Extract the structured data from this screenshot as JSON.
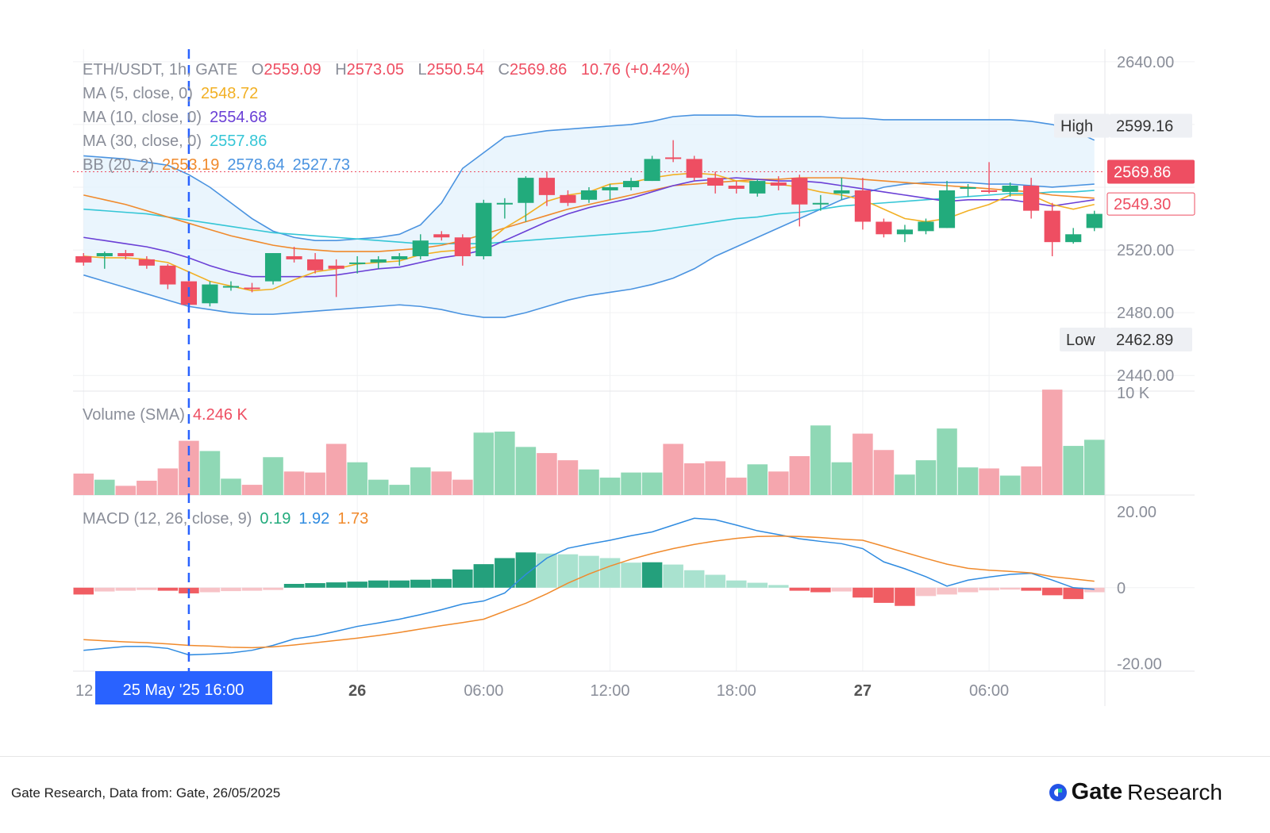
{
  "legend": {
    "ohlc": {
      "symbol": "ETH/USDT, 1h, GATE",
      "o_label": "O",
      "o": "2559.09",
      "h_label": "H",
      "h": "2573.05",
      "l_label": "L",
      "l": "2550.54",
      "c_label": "C",
      "c": "2569.86",
      "change": "10.76 (+0.42%)"
    },
    "ma5": {
      "label": "MA (5, close, 0)",
      "value": "2548.72"
    },
    "ma10": {
      "label": "MA (10, close, 0)",
      "value": "2554.68"
    },
    "ma30": {
      "label": "MA (30, close, 0)",
      "value": "2557.86"
    },
    "bb": {
      "label": "BB (20, 2)",
      "mid": "2553.19",
      "upper": "2578.64",
      "lower": "2527.73"
    },
    "volume": {
      "label": "Volume (SMA)",
      "value": "4.246 K"
    },
    "macd": {
      "label": "MACD (12, 26, close, 9)",
      "hist": "0.19",
      "macd": "1.92",
      "signal": "1.73"
    }
  },
  "price_badges": {
    "high_label": "High",
    "high": "2599.16",
    "low_label": "Low",
    "low": "2462.89",
    "last": "2569.86",
    "ma_tag": "2549.30"
  },
  "crosshair_label": "25 May '25   16:00",
  "footer": {
    "source": "Gate Research, Data from: Gate, 26/05/2025",
    "brand_bold": "Gate",
    "brand_light": "Research"
  },
  "colors": {
    "up": "#22ab7c",
    "down": "#ee4e62",
    "ma5": "#f2b024",
    "ma10": "#6a3fd6",
    "ma30": "#35c6d6",
    "bb_mid": "#f08a2c",
    "bb_band": "#4a93e0",
    "macd_line": "#2f8be0",
    "signal_line": "#f08a2c",
    "crosshair": "#2962ff"
  },
  "chart_data": {
    "type": "candlestick",
    "x_ticks": [
      "12",
      "26",
      "06:00",
      "12:00",
      "18:00",
      "27",
      "06:00"
    ],
    "price_axis": {
      "ticks": [
        "2640.00",
        "2520.00",
        "2480.00",
        "2440.00"
      ],
      "range": [
        2430,
        2648
      ]
    },
    "volume_axis": {
      "ticks": [
        "10 K"
      ],
      "range": [
        0,
        10000
      ]
    },
    "macd_axis": {
      "ticks": [
        "20.00",
        "0",
        "-20.00"
      ],
      "range": [
        -22,
        24
      ]
    },
    "candles": [
      [
        2516,
        2518,
        2510,
        2512
      ],
      [
        2516,
        2519,
        2508,
        2518
      ],
      [
        2518,
        2520,
        2514,
        2516
      ],
      [
        2514,
        2516,
        2508,
        2510
      ],
      [
        2510,
        2511,
        2495,
        2498
      ],
      [
        2500,
        2502,
        2482,
        2485
      ],
      [
        2486,
        2500,
        2484,
        2498
      ],
      [
        2497,
        2500,
        2494,
        2497
      ],
      [
        2496,
        2499,
        2493,
        2495
      ],
      [
        2500,
        2518,
        2498,
        2518
      ],
      [
        2516,
        2522,
        2512,
        2514
      ],
      [
        2514,
        2518,
        2505,
        2507
      ],
      [
        2510,
        2514,
        2490,
        2508
      ],
      [
        2512,
        2516,
        2505,
        2512
      ],
      [
        2512,
        2516,
        2508,
        2514
      ],
      [
        2514,
        2518,
        2510,
        2516
      ],
      [
        2516,
        2530,
        2514,
        2526
      ],
      [
        2530,
        2532,
        2526,
        2528
      ],
      [
        2528,
        2530,
        2510,
        2516
      ],
      [
        2516,
        2552,
        2514,
        2550
      ],
      [
        2550,
        2553,
        2540,
        2550
      ],
      [
        2550,
        2567,
        2538,
        2566
      ],
      [
        2566,
        2570,
        2548,
        2555
      ],
      [
        2555,
        2558,
        2548,
        2550
      ],
      [
        2552,
        2560,
        2550,
        2558
      ],
      [
        2558,
        2562,
        2552,
        2560
      ],
      [
        2560,
        2566,
        2558,
        2564
      ],
      [
        2564,
        2580,
        2564,
        2578
      ],
      [
        2579,
        2590,
        2576,
        2578
      ],
      [
        2578,
        2580,
        2564,
        2566
      ],
      [
        2566,
        2570,
        2556,
        2561
      ],
      [
        2561,
        2564,
        2556,
        2559
      ],
      [
        2556,
        2565,
        2554,
        2564
      ],
      [
        2563,
        2567,
        2558,
        2561
      ],
      [
        2566,
        2568,
        2535,
        2549
      ],
      [
        2550,
        2555,
        2545,
        2550
      ],
      [
        2556,
        2566,
        2552,
        2558
      ],
      [
        2558,
        2566,
        2533,
        2538
      ],
      [
        2538,
        2540,
        2528,
        2530
      ],
      [
        2530,
        2536,
        2525,
        2533
      ],
      [
        2532,
        2540,
        2530,
        2538
      ],
      [
        2534,
        2564,
        2534,
        2558
      ],
      [
        2560,
        2562,
        2554,
        2560
      ],
      [
        2558,
        2576,
        2556,
        2557
      ],
      [
        2557,
        2563,
        2554,
        2561
      ],
      [
        2561,
        2566,
        2540,
        2545
      ],
      [
        2545,
        2550,
        2516,
        2525
      ],
      [
        2525,
        2534,
        2524,
        2530
      ],
      [
        2534,
        2545,
        2532,
        2543
      ]
    ],
    "bb_upper": [
      2580,
      2579,
      2578,
      2576,
      2574,
      2568,
      2560,
      2550,
      2540,
      2532,
      2528,
      2526,
      2526,
      2527,
      2528,
      2530,
      2536,
      2550,
      2572,
      2582,
      2592,
      2594,
      2596,
      2597,
      2598,
      2599,
      2600,
      2602,
      2605,
      2606,
      2606,
      2606,
      2605,
      2605,
      2605,
      2605,
      2604,
      2604,
      2603,
      2603,
      2603,
      2603,
      2603,
      2603,
      2603,
      2602,
      2600,
      2596,
      2590
    ],
    "bb_middle": [
      2555,
      2552,
      2549,
      2545,
      2541,
      2537,
      2533,
      2529,
      2526,
      2523,
      2521,
      2520,
      2519,
      2519,
      2519,
      2520,
      2521,
      2523,
      2526,
      2530,
      2534,
      2538,
      2542,
      2546,
      2549,
      2552,
      2555,
      2558,
      2561,
      2562,
      2563,
      2564,
      2565,
      2565,
      2566,
      2566,
      2566,
      2565,
      2564,
      2563,
      2562,
      2561,
      2560,
      2559,
      2558,
      2557,
      2555,
      2554,
      2553
    ],
    "bb_lower": [
      2504,
      2500,
      2496,
      2492,
      2488,
      2484,
      2482,
      2480,
      2479,
      2479,
      2480,
      2481,
      2482,
      2483,
      2484,
      2485,
      2484,
      2482,
      2479,
      2477,
      2477,
      2480,
      2484,
      2488,
      2491,
      2493,
      2495,
      2498,
      2502,
      2508,
      2516,
      2522,
      2528,
      2534,
      2540,
      2546,
      2552,
      2556,
      2560,
      2562,
      2563,
      2563,
      2563,
      2562,
      2562,
      2561,
      2560,
      2561,
      2562
    ],
    "ma5": [
      2516,
      2515,
      2515,
      2514,
      2512,
      2506,
      2500,
      2497,
      2494,
      2495,
      2501,
      2506,
      2508,
      2511,
      2512,
      2513,
      2517,
      2519,
      2520,
      2523,
      2534,
      2542,
      2551,
      2555,
      2557,
      2562,
      2563,
      2566,
      2568,
      2569,
      2568,
      2564,
      2563,
      2562,
      2560,
      2557,
      2555,
      2552,
      2546,
      2540,
      2538,
      2540,
      2545,
      2549,
      2555,
      2555,
      2549,
      2546,
      2549
    ],
    "ma10": [
      2528,
      2526,
      2524,
      2522,
      2519,
      2515,
      2510,
      2506,
      2503,
      2503,
      2503,
      2503,
      2504,
      2506,
      2508,
      2509,
      2512,
      2515,
      2517,
      2520,
      2526,
      2532,
      2538,
      2543,
      2547,
      2550,
      2553,
      2557,
      2561,
      2564,
      2565,
      2566,
      2565,
      2564,
      2564,
      2563,
      2561,
      2559,
      2557,
      2555,
      2553,
      2551,
      2552,
      2552,
      2552,
      2550,
      2548,
      2550,
      2552
    ],
    "ma30": [
      2546,
      2545,
      2544,
      2543,
      2541,
      2539,
      2537,
      2535,
      2533,
      2531,
      2530,
      2529,
      2528,
      2527,
      2526,
      2525,
      2524,
      2524,
      2524,
      2524,
      2525,
      2526,
      2527,
      2528,
      2529,
      2530,
      2531,
      2532,
      2534,
      2536,
      2538,
      2540,
      2541,
      2543,
      2544,
      2546,
      2548,
      2549,
      2550,
      2551,
      2552,
      2553,
      2554,
      2555,
      2556,
      2556,
      2557,
      2557,
      2558
    ],
    "volume": [
      2100,
      1500,
      900,
      1400,
      2600,
      5300,
      4300,
      1600,
      1000,
      3700,
      2300,
      2200,
      5000,
      3200,
      1500,
      1000,
      2700,
      2300,
      1500,
      6100,
      6200,
      4700,
      4100,
      3400,
      2500,
      1700,
      2200,
      2200,
      5000,
      3100,
      3300,
      1700,
      3000,
      2300,
      3800,
      6800,
      3200,
      6000,
      4400,
      2000,
      3400,
      6500,
      2700,
      2600,
      1900,
      2800,
      10300,
      4800,
      5400
    ],
    "macd_hist": [
      -1.8,
      -1,
      -0.8,
      -0.6,
      -0.8,
      -1.5,
      -1.2,
      -0.9,
      -0.8,
      -0.6,
      1,
      1.2,
      1.4,
      1.6,
      1.9,
      1.9,
      2.1,
      2.3,
      4.8,
      6.2,
      7.8,
      9.3,
      9,
      8.8,
      8.4,
      7.8,
      6.6,
      6.7,
      6.1,
      4.6,
      3.4,
      1.9,
      1.3,
      0.7,
      -0.8,
      -1.2,
      -1,
      -2.6,
      -4,
      -4.8,
      -2.2,
      -1.8,
      -1.2,
      -0.7,
      -0.5,
      -0.8,
      -2,
      -3,
      -1.2
    ],
    "macd_line": [
      -16.5,
      -16,
      -15.5,
      -15.5,
      -16,
      -17.7,
      -17.5,
      -17.2,
      -16.5,
      -15.2,
      -13.5,
      -12.7,
      -11.5,
      -10.2,
      -9.3,
      -8.3,
      -7.1,
      -5.8,
      -4.3,
      -3.5,
      -1.4,
      3.5,
      7.8,
      10.4,
      11.5,
      12.5,
      13.7,
      14.7,
      16.5,
      18.3,
      17.9,
      16.5,
      15,
      14,
      12.9,
      12.2,
      11.6,
      10.3,
      6.8,
      5,
      2.9,
      0.4,
      2,
      2.8,
      3.5,
      3.8,
      2,
      0,
      -0.4
    ],
    "signal_line": [
      -13.7,
      -14,
      -14.3,
      -14.5,
      -14.8,
      -15.2,
      -15.4,
      -15.7,
      -15.8,
      -15.6,
      -15.1,
      -14.5,
      -13.9,
      -13.3,
      -12.6,
      -11.8,
      -10.9,
      -10,
      -9.2,
      -8.3,
      -6.2,
      -4.1,
      -1.6,
      1.2,
      3.6,
      5.7,
      7.5,
      9,
      10.3,
      11.4,
      12.3,
      13,
      13.5,
      13.6,
      13.5,
      13.2,
      12.8,
      12.5,
      10.9,
      9.3,
      7.7,
      6.2,
      5.1,
      4.6,
      4.3,
      3.9,
      2.9,
      2.3,
      1.7
    ]
  }
}
